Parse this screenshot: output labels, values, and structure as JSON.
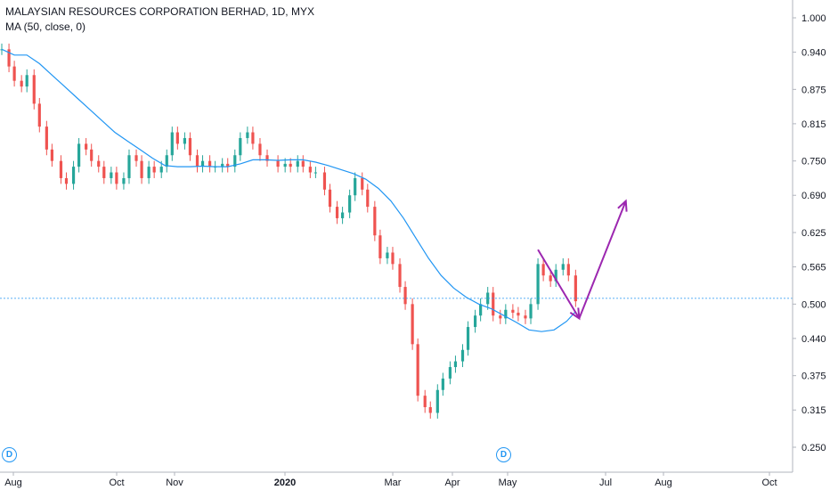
{
  "header": {
    "title": "MALAYSIAN RESOURCES CORPORATION BERHAD, 1D, MYX",
    "indicator": "MA (50, close, 0)"
  },
  "badges": [
    "D",
    "D"
  ],
  "colors": {
    "up": "#26a69a",
    "down": "#ef5350",
    "ma": "#2196f3",
    "arrow": "#9c27b0",
    "grid_axis": "#b2b5be",
    "text": "#131722"
  },
  "chart_data": {
    "type": "candlestick",
    "title": "MALAYSIAN RESOURCES CORPORATION BERHAD, 1D, MYX",
    "interval": "1D",
    "exchange": "MYX",
    "y_axis": {
      "side": "right",
      "ticks": [
        "1.000",
        "0.940",
        "0.875",
        "0.815",
        "0.750",
        "0.690",
        "0.625",
        "0.565",
        "0.500",
        "0.440",
        "0.375",
        "0.315",
        "0.250"
      ],
      "ylim": [
        0.23,
        1.02
      ]
    },
    "x_axis": {
      "ticks": [
        "Aug",
        "Oct",
        "Nov",
        "2020",
        "Mar",
        "Apr",
        "May",
        "Jul",
        "Aug",
        "Oct"
      ],
      "range": [
        "2019-07-31",
        "2020-10-15"
      ]
    },
    "horizontal_line": 0.51,
    "grid": false,
    "series": [
      {
        "name": "Price",
        "type": "candlestick",
        "points": [
          {
            "date": "2019-08-01",
            "close": 0.945
          },
          {
            "date": "2019-08-05",
            "close": 0.915
          },
          {
            "date": "2019-08-08",
            "close": 0.89
          },
          {
            "date": "2019-08-12",
            "close": 0.88
          },
          {
            "date": "2019-08-15",
            "close": 0.9
          },
          {
            "date": "2019-08-19",
            "close": 0.85
          },
          {
            "date": "2019-08-22",
            "close": 0.81
          },
          {
            "date": "2019-08-26",
            "close": 0.77
          },
          {
            "date": "2019-08-29",
            "close": 0.75
          },
          {
            "date": "2019-09-03",
            "close": 0.72
          },
          {
            "date": "2019-09-06",
            "close": 0.71
          },
          {
            "date": "2019-09-10",
            "close": 0.74
          },
          {
            "date": "2019-09-13",
            "close": 0.78
          },
          {
            "date": "2019-09-17",
            "close": 0.77
          },
          {
            "date": "2019-09-20",
            "close": 0.75
          },
          {
            "date": "2019-09-24",
            "close": 0.74
          },
          {
            "date": "2019-09-27",
            "close": 0.72
          },
          {
            "date": "2019-10-01",
            "close": 0.73
          },
          {
            "date": "2019-10-04",
            "close": 0.71
          },
          {
            "date": "2019-10-08",
            "close": 0.72
          },
          {
            "date": "2019-10-11",
            "close": 0.76
          },
          {
            "date": "2019-10-15",
            "close": 0.75
          },
          {
            "date": "2019-10-18",
            "close": 0.72
          },
          {
            "date": "2019-10-22",
            "close": 0.74
          },
          {
            "date": "2019-10-25",
            "close": 0.73
          },
          {
            "date": "2019-10-29",
            "close": 0.74
          },
          {
            "date": "2019-11-01",
            "close": 0.76
          },
          {
            "date": "2019-11-04",
            "close": 0.8
          },
          {
            "date": "2019-11-07",
            "close": 0.78
          },
          {
            "date": "2019-11-11",
            "close": 0.79
          },
          {
            "date": "2019-11-14",
            "close": 0.76
          },
          {
            "date": "2019-11-18",
            "close": 0.74
          },
          {
            "date": "2019-11-21",
            "close": 0.75
          },
          {
            "date": "2019-11-25",
            "close": 0.74
          },
          {
            "date": "2019-11-28",
            "close": 0.74
          },
          {
            "date": "2019-12-02",
            "close": 0.745
          },
          {
            "date": "2019-12-05",
            "close": 0.74
          },
          {
            "date": "2019-12-09",
            "close": 0.76
          },
          {
            "date": "2019-12-12",
            "close": 0.79
          },
          {
            "date": "2019-12-16",
            "close": 0.8
          },
          {
            "date": "2019-12-19",
            "close": 0.78
          },
          {
            "date": "2019-12-23",
            "close": 0.76
          },
          {
            "date": "2019-12-27",
            "close": 0.75
          },
          {
            "date": "2020-01-02",
            "close": 0.74
          },
          {
            "date": "2020-01-06",
            "close": 0.745
          },
          {
            "date": "2020-01-09",
            "close": 0.74
          },
          {
            "date": "2020-01-13",
            "close": 0.75
          },
          {
            "date": "2020-01-16",
            "close": 0.74
          },
          {
            "date": "2020-01-20",
            "close": 0.73
          },
          {
            "date": "2020-01-23",
            "close": 0.73
          },
          {
            "date": "2020-01-28",
            "close": 0.7
          },
          {
            "date": "2020-01-31",
            "close": 0.67
          },
          {
            "date": "2020-02-04",
            "close": 0.65
          },
          {
            "date": "2020-02-07",
            "close": 0.66
          },
          {
            "date": "2020-02-11",
            "close": 0.69
          },
          {
            "date": "2020-02-14",
            "close": 0.72
          },
          {
            "date": "2020-02-18",
            "close": 0.7
          },
          {
            "date": "2020-02-21",
            "close": 0.67
          },
          {
            "date": "2020-02-25",
            "close": 0.62
          },
          {
            "date": "2020-02-28",
            "close": 0.58
          },
          {
            "date": "2020-03-03",
            "close": 0.59
          },
          {
            "date": "2020-03-06",
            "close": 0.57
          },
          {
            "date": "2020-03-10",
            "close": 0.53
          },
          {
            "date": "2020-03-13",
            "close": 0.5
          },
          {
            "date": "2020-03-17",
            "close": 0.43
          },
          {
            "date": "2020-03-20",
            "close": 0.34
          },
          {
            "date": "2020-03-24",
            "close": 0.32
          },
          {
            "date": "2020-03-27",
            "close": 0.31
          },
          {
            "date": "2020-03-31",
            "close": 0.35
          },
          {
            "date": "2020-04-03",
            "close": 0.37
          },
          {
            "date": "2020-04-07",
            "close": 0.39
          },
          {
            "date": "2020-04-10",
            "close": 0.4
          },
          {
            "date": "2020-04-14",
            "close": 0.42
          },
          {
            "date": "2020-04-17",
            "close": 0.46
          },
          {
            "date": "2020-04-21",
            "close": 0.48
          },
          {
            "date": "2020-04-24",
            "close": 0.5
          },
          {
            "date": "2020-04-28",
            "close": 0.52
          },
          {
            "date": "2020-05-01",
            "close": 0.48
          },
          {
            "date": "2020-05-05",
            "close": 0.475
          },
          {
            "date": "2020-05-08",
            "close": 0.49
          },
          {
            "date": "2020-05-12",
            "close": 0.485
          },
          {
            "date": "2020-05-15",
            "close": 0.48
          },
          {
            "date": "2020-05-19",
            "close": 0.475
          },
          {
            "date": "2020-05-22",
            "close": 0.5
          },
          {
            "date": "2020-05-26",
            "close": 0.57
          },
          {
            "date": "2020-05-29",
            "close": 0.55
          },
          {
            "date": "2020-06-02",
            "close": 0.54
          },
          {
            "date": "2020-06-05",
            "close": 0.56
          },
          {
            "date": "2020-06-09",
            "close": 0.57
          },
          {
            "date": "2020-06-12",
            "close": 0.55
          },
          {
            "date": "2020-06-16",
            "close": 0.505
          }
        ]
      },
      {
        "name": "MA (50, close, 0)",
        "type": "line",
        "points": [
          {
            "date": "2019-08-01",
            "value": 0.945
          },
          {
            "date": "2019-08-08",
            "value": 0.935
          },
          {
            "date": "2019-08-15",
            "value": 0.935
          },
          {
            "date": "2019-08-22",
            "value": 0.92
          },
          {
            "date": "2019-08-29",
            "value": 0.9
          },
          {
            "date": "2019-09-05",
            "value": 0.88
          },
          {
            "date": "2019-09-12",
            "value": 0.86
          },
          {
            "date": "2019-09-19",
            "value": 0.84
          },
          {
            "date": "2019-09-26",
            "value": 0.82
          },
          {
            "date": "2019-10-03",
            "value": 0.8
          },
          {
            "date": "2019-10-10",
            "value": 0.785
          },
          {
            "date": "2019-10-17",
            "value": 0.77
          },
          {
            "date": "2019-10-24",
            "value": 0.755
          },
          {
            "date": "2019-10-31",
            "value": 0.742
          },
          {
            "date": "2019-11-07",
            "value": 0.74
          },
          {
            "date": "2019-11-14",
            "value": 0.74
          },
          {
            "date": "2019-11-21",
            "value": 0.741
          },
          {
            "date": "2019-11-28",
            "value": 0.74
          },
          {
            "date": "2019-12-05",
            "value": 0.74
          },
          {
            "date": "2019-12-12",
            "value": 0.745
          },
          {
            "date": "2019-12-19",
            "value": 0.752
          },
          {
            "date": "2019-12-26",
            "value": 0.752
          },
          {
            "date": "2020-01-02",
            "value": 0.751
          },
          {
            "date": "2020-01-09",
            "value": 0.752
          },
          {
            "date": "2020-01-16",
            "value": 0.752
          },
          {
            "date": "2020-01-23",
            "value": 0.748
          },
          {
            "date": "2020-01-30",
            "value": 0.742
          },
          {
            "date": "2020-02-06",
            "value": 0.735
          },
          {
            "date": "2020-02-13",
            "value": 0.728
          },
          {
            "date": "2020-02-20",
            "value": 0.718
          },
          {
            "date": "2020-02-27",
            "value": 0.702
          },
          {
            "date": "2020-03-05",
            "value": 0.68
          },
          {
            "date": "2020-03-12",
            "value": 0.65
          },
          {
            "date": "2020-03-19",
            "value": 0.615
          },
          {
            "date": "2020-03-26",
            "value": 0.58
          },
          {
            "date": "2020-04-02",
            "value": 0.55
          },
          {
            "date": "2020-04-09",
            "value": 0.528
          },
          {
            "date": "2020-04-16",
            "value": 0.512
          },
          {
            "date": "2020-04-23",
            "value": 0.5
          },
          {
            "date": "2020-04-30",
            "value": 0.492
          },
          {
            "date": "2020-05-07",
            "value": 0.48
          },
          {
            "date": "2020-05-14",
            "value": 0.468
          },
          {
            "date": "2020-05-21",
            "value": 0.455
          },
          {
            "date": "2020-05-28",
            "value": 0.452
          },
          {
            "date": "2020-06-04",
            "value": 0.455
          },
          {
            "date": "2020-06-11",
            "value": 0.47
          },
          {
            "date": "2020-06-16",
            "value": 0.487
          }
        ]
      }
    ],
    "annotations": [
      {
        "type": "arrow",
        "from": {
          "date": "2020-05-26",
          "value": 0.595
        },
        "to": {
          "date": "2020-06-18",
          "value": 0.475
        }
      },
      {
        "type": "arrow",
        "from": {
          "date": "2020-06-18",
          "value": 0.475
        },
        "to": {
          "date": "2020-07-14",
          "value": 0.68
        }
      }
    ]
  }
}
